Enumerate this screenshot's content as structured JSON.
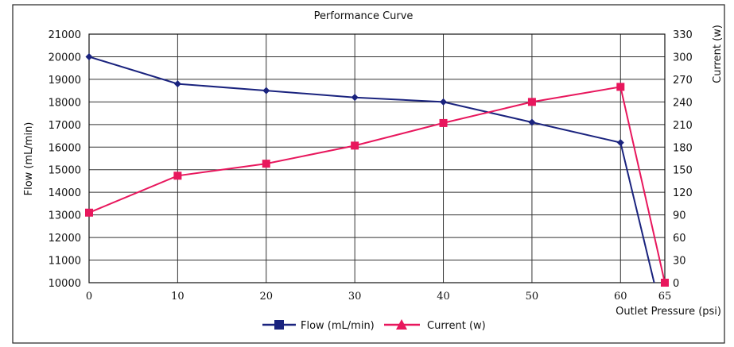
{
  "chart_data": {
    "type": "line",
    "title": "Performance Curve",
    "xlabel": "Outlet Pressure (psi)",
    "ylabel_left": "Flow (mL/min)",
    "ylabel_right": "Current (w)",
    "xlim": [
      0,
      65
    ],
    "ylim_left": [
      10000,
      21000
    ],
    "ylim_right": [
      0,
      330
    ],
    "x_ticks": [
      "0",
      "10",
      "20",
      "30",
      "40",
      "50",
      "60",
      "65"
    ],
    "y_left_ticks": [
      "10000",
      "11000",
      "12000",
      "13000",
      "14000",
      "15000",
      "16000",
      "17000",
      "18000",
      "19000",
      "20000",
      "21000"
    ],
    "y_right_ticks": [
      "0",
      "30",
      "60",
      "90",
      "120",
      "150",
      "180",
      "210",
      "240",
      "270",
      "300",
      "330"
    ],
    "grid": true,
    "legend_position": "bottom",
    "series": [
      {
        "name": "Flow (mL/min)",
        "axis": "left",
        "color": "#1a237e",
        "marker": "diamond",
        "points": [
          [
            0,
            20000
          ],
          [
            10,
            18800
          ],
          [
            20,
            18500
          ],
          [
            30,
            18200
          ],
          [
            40,
            18000
          ],
          [
            50,
            17100
          ],
          [
            60,
            16200
          ],
          [
            63.8,
            10000
          ]
        ]
      },
      {
        "name": "Current (w)",
        "axis": "right",
        "color": "#e8175d",
        "marker": "square",
        "points": [
          [
            0,
            93
          ],
          [
            10,
            142
          ],
          [
            20,
            158
          ],
          [
            30,
            182
          ],
          [
            40,
            212
          ],
          [
            50,
            240
          ],
          [
            60,
            260
          ],
          [
            65,
            0
          ]
        ]
      }
    ]
  }
}
